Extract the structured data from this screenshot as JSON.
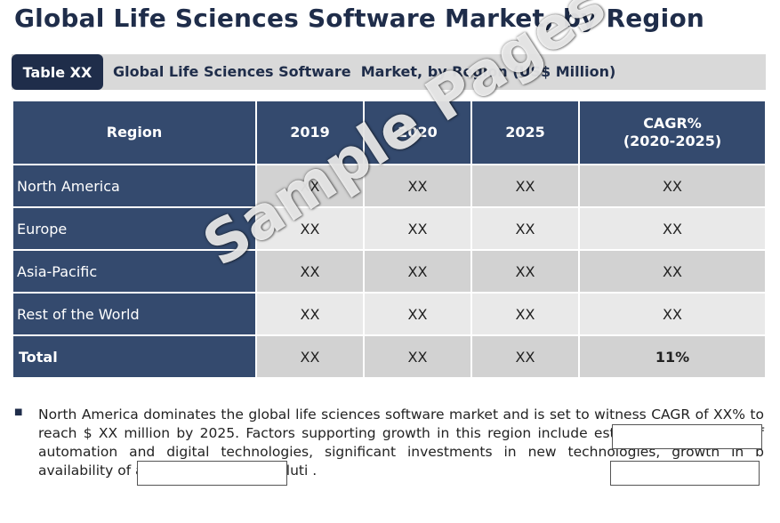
{
  "title": "Global Life Sciences Software Market, by Region",
  "banner": {
    "tag": "Table XX",
    "caption": "Global Life Sciences Software  Market, by Region (US$ Million)"
  },
  "table": {
    "headers": [
      "Region",
      "2019",
      "2020",
      "2025",
      "CAGR%\n(2020-2025)"
    ],
    "rows": [
      {
        "region": "North America",
        "values": [
          "XX",
          "XX",
          "XX",
          "XX"
        ]
      },
      {
        "region": "Europe",
        "values": [
          "XX",
          "XX",
          "XX",
          "XX"
        ]
      },
      {
        "region": "Asia-Pacific",
        "values": [
          "XX",
          "XX",
          "XX",
          "XX"
        ]
      },
      {
        "region": "Rest of the World",
        "values": [
          "XX",
          "XX",
          "XX",
          "XX"
        ]
      },
      {
        "region": "Total",
        "values": [
          "XX",
          "XX",
          "XX",
          "11%"
        ]
      }
    ]
  },
  "watermark": "Sample Pages",
  "paragraph": "North America dominates the global life sciences software market and is set to witness CAGR of XX% to reach $ XX million by 2025. Factors supporting growth in this region include estab greater degree of automation and digital technologies, significant investments in new technologies, growth in b availability of advanced software soluti ."
}
